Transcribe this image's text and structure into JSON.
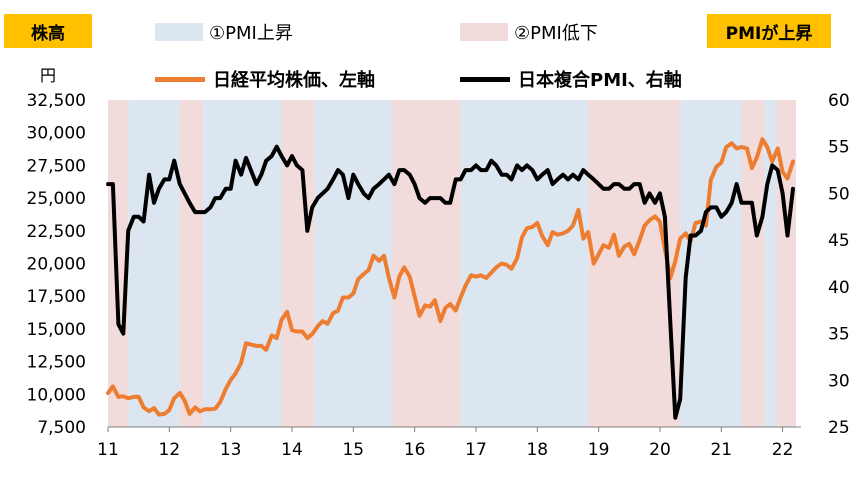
{
  "badge_left": "株高",
  "badge_right": "PMIが上昇",
  "unit_label": "円",
  "chart_data": {
    "type": "line",
    "title": "",
    "xlabel": "",
    "x_tick_labels": [
      "11",
      "12",
      "13",
      "14",
      "15",
      "16",
      "17",
      "18",
      "19",
      "20",
      "21",
      "22"
    ],
    "x_range": [
      2011.0,
      2022.3
    ],
    "left_axis": {
      "ylim": [
        7500,
        32500
      ],
      "ticks": [
        "7,500",
        "10,000",
        "12,500",
        "15,000",
        "17,500",
        "20,000",
        "22,500",
        "25,000",
        "27,500",
        "30,000",
        "32,500"
      ],
      "tick_values": [
        7500,
        10000,
        12500,
        15000,
        17500,
        20000,
        22500,
        25000,
        27500,
        30000,
        32500
      ]
    },
    "right_axis": {
      "ylim": [
        25,
        60
      ],
      "ticks": [
        "25",
        "30",
        "35",
        "40",
        "45",
        "50",
        "55",
        "60"
      ],
      "tick_values": [
        25,
        30,
        35,
        40,
        45,
        50,
        55,
        60
      ]
    },
    "shading": {
      "legend": [
        {
          "label": "①PMI上昇",
          "color": "#dce6f1"
        },
        {
          "label": "②PMI低下",
          "color": "#f2dcdb"
        }
      ],
      "periods": [
        {
          "type": 2,
          "start": 2011.0,
          "end": 2011.33
        },
        {
          "type": 1,
          "start": 2011.33,
          "end": 2012.17
        },
        {
          "type": 2,
          "start": 2012.17,
          "end": 2012.55
        },
        {
          "type": 1,
          "start": 2012.55,
          "end": 2013.83
        },
        {
          "type": 2,
          "start": 2013.83,
          "end": 2014.37
        },
        {
          "type": 1,
          "start": 2014.37,
          "end": 2015.63
        },
        {
          "type": 2,
          "start": 2015.63,
          "end": 2016.75
        },
        {
          "type": 1,
          "start": 2016.75,
          "end": 2018.83
        },
        {
          "type": 2,
          "start": 2018.83,
          "end": 2020.33
        },
        {
          "type": 1,
          "start": 2020.33,
          "end": 2021.33
        },
        {
          "type": 2,
          "start": 2021.33,
          "end": 2021.7
        },
        {
          "type": 1,
          "start": 2021.7,
          "end": 2021.9
        },
        {
          "type": 2,
          "start": 2021.9,
          "end": 2022.22
        }
      ]
    },
    "series": [
      {
        "name": "日経平均株価、左軸",
        "axis": "left",
        "color": "#ed7d31",
        "points": [
          [
            2011.0,
            10100
          ],
          [
            2011.08,
            10600
          ],
          [
            2011.17,
            9800
          ],
          [
            2011.25,
            9850
          ],
          [
            2011.33,
            9700
          ],
          [
            2011.42,
            9800
          ],
          [
            2011.5,
            9800
          ],
          [
            2011.58,
            9000
          ],
          [
            2011.67,
            8700
          ],
          [
            2011.75,
            8950
          ],
          [
            2011.83,
            8450
          ],
          [
            2011.92,
            8500
          ],
          [
            2012.0,
            8800
          ],
          [
            2012.08,
            9700
          ],
          [
            2012.17,
            10100
          ],
          [
            2012.25,
            9500
          ],
          [
            2012.33,
            8500
          ],
          [
            2012.42,
            9000
          ],
          [
            2012.5,
            8700
          ],
          [
            2012.58,
            8850
          ],
          [
            2012.67,
            8850
          ],
          [
            2012.75,
            8900
          ],
          [
            2012.83,
            9400
          ],
          [
            2012.92,
            10400
          ],
          [
            2013.0,
            11100
          ],
          [
            2013.08,
            11600
          ],
          [
            2013.17,
            12400
          ],
          [
            2013.25,
            13900
          ],
          [
            2013.33,
            13800
          ],
          [
            2013.42,
            13700
          ],
          [
            2013.5,
            13700
          ],
          [
            2013.58,
            13400
          ],
          [
            2013.67,
            14500
          ],
          [
            2013.75,
            14300
          ],
          [
            2013.83,
            15700
          ],
          [
            2013.92,
            16300
          ],
          [
            2014.0,
            14900
          ],
          [
            2014.08,
            14800
          ],
          [
            2014.17,
            14800
          ],
          [
            2014.25,
            14300
          ],
          [
            2014.33,
            14600
          ],
          [
            2014.42,
            15200
          ],
          [
            2014.5,
            15600
          ],
          [
            2014.58,
            15400
          ],
          [
            2014.67,
            16200
          ],
          [
            2014.75,
            16400
          ],
          [
            2014.83,
            17400
          ],
          [
            2014.92,
            17400
          ],
          [
            2015.0,
            17700
          ],
          [
            2015.08,
            18800
          ],
          [
            2015.17,
            19200
          ],
          [
            2015.25,
            19500
          ],
          [
            2015.33,
            20600
          ],
          [
            2015.42,
            20200
          ],
          [
            2015.5,
            20600
          ],
          [
            2015.58,
            18900
          ],
          [
            2015.67,
            17400
          ],
          [
            2015.75,
            19000
          ],
          [
            2015.83,
            19700
          ],
          [
            2015.92,
            19000
          ],
          [
            2016.0,
            17500
          ],
          [
            2016.08,
            16000
          ],
          [
            2016.17,
            16800
          ],
          [
            2016.25,
            16700
          ],
          [
            2016.33,
            17200
          ],
          [
            2016.42,
            15600
          ],
          [
            2016.5,
            16600
          ],
          [
            2016.58,
            16900
          ],
          [
            2016.67,
            16400
          ],
          [
            2016.75,
            17400
          ],
          [
            2016.83,
            18300
          ],
          [
            2016.92,
            19100
          ],
          [
            2017.0,
            19000
          ],
          [
            2017.08,
            19100
          ],
          [
            2017.17,
            18900
          ],
          [
            2017.25,
            19300
          ],
          [
            2017.33,
            19700
          ],
          [
            2017.42,
            20000
          ],
          [
            2017.5,
            19900
          ],
          [
            2017.58,
            19600
          ],
          [
            2017.67,
            20400
          ],
          [
            2017.75,
            22000
          ],
          [
            2017.83,
            22700
          ],
          [
            2017.92,
            22800
          ],
          [
            2018.0,
            23100
          ],
          [
            2018.08,
            22100
          ],
          [
            2018.17,
            21400
          ],
          [
            2018.25,
            22400
          ],
          [
            2018.33,
            22200
          ],
          [
            2018.42,
            22300
          ],
          [
            2018.5,
            22500
          ],
          [
            2018.58,
            22900
          ],
          [
            2018.67,
            24100
          ],
          [
            2018.75,
            21900
          ],
          [
            2018.83,
            22400
          ],
          [
            2018.92,
            20000
          ],
          [
            2019.0,
            20700
          ],
          [
            2019.08,
            21400
          ],
          [
            2019.17,
            21200
          ],
          [
            2019.25,
            22200
          ],
          [
            2019.33,
            20600
          ],
          [
            2019.42,
            21300
          ],
          [
            2019.5,
            21500
          ],
          [
            2019.58,
            20700
          ],
          [
            2019.67,
            21800
          ],
          [
            2019.75,
            22900
          ],
          [
            2019.83,
            23300
          ],
          [
            2019.92,
            23600
          ],
          [
            2020.0,
            23200
          ],
          [
            2020.08,
            21100
          ],
          [
            2020.17,
            18900
          ],
          [
            2020.25,
            20200
          ],
          [
            2020.33,
            21900
          ],
          [
            2020.42,
            22300
          ],
          [
            2020.5,
            21700
          ],
          [
            2020.58,
            23100
          ],
          [
            2020.67,
            23200
          ],
          [
            2020.75,
            22900
          ],
          [
            2020.83,
            26400
          ],
          [
            2020.92,
            27400
          ],
          [
            2021.0,
            27700
          ],
          [
            2021.08,
            28900
          ],
          [
            2021.17,
            29200
          ],
          [
            2021.25,
            28800
          ],
          [
            2021.33,
            28900
          ],
          [
            2021.42,
            28800
          ],
          [
            2021.5,
            27300
          ],
          [
            2021.58,
            28100
          ],
          [
            2021.67,
            29500
          ],
          [
            2021.75,
            28900
          ],
          [
            2021.83,
            27800
          ],
          [
            2021.92,
            28800
          ],
          [
            2022.0,
            27000
          ],
          [
            2022.08,
            26500
          ],
          [
            2022.17,
            27800
          ]
        ]
      },
      {
        "name": "日本複合PMI、右軸",
        "axis": "right",
        "color": "#000000",
        "points": [
          [
            2011.0,
            51
          ],
          [
            2011.08,
            51
          ],
          [
            2011.17,
            36
          ],
          [
            2011.25,
            35
          ],
          [
            2011.33,
            46
          ],
          [
            2011.42,
            47.5
          ],
          [
            2011.5,
            47.5
          ],
          [
            2011.58,
            47
          ],
          [
            2011.67,
            52
          ],
          [
            2011.75,
            49
          ],
          [
            2011.83,
            50.5
          ],
          [
            2011.92,
            51.5
          ],
          [
            2012.0,
            51.5
          ],
          [
            2012.08,
            53.5
          ],
          [
            2012.17,
            51
          ],
          [
            2012.25,
            50
          ],
          [
            2012.33,
            49
          ],
          [
            2012.42,
            48
          ],
          [
            2012.5,
            48
          ],
          [
            2012.58,
            48
          ],
          [
            2012.67,
            48.5
          ],
          [
            2012.75,
            49.5
          ],
          [
            2012.83,
            49.5
          ],
          [
            2012.92,
            50.5
          ],
          [
            2013.0,
            50.5
          ],
          [
            2013.08,
            53.5
          ],
          [
            2013.17,
            52
          ],
          [
            2013.25,
            53.8
          ],
          [
            2013.33,
            52.5
          ],
          [
            2013.42,
            51
          ],
          [
            2013.5,
            52
          ],
          [
            2013.58,
            53.5
          ],
          [
            2013.67,
            54
          ],
          [
            2013.75,
            55
          ],
          [
            2013.83,
            54
          ],
          [
            2013.92,
            53
          ],
          [
            2014.0,
            54
          ],
          [
            2014.08,
            53
          ],
          [
            2014.17,
            52.5
          ],
          [
            2014.25,
            46
          ],
          [
            2014.33,
            48.5
          ],
          [
            2014.42,
            49.5
          ],
          [
            2014.5,
            50
          ],
          [
            2014.58,
            50.5
          ],
          [
            2014.67,
            51.5
          ],
          [
            2014.75,
            52.5
          ],
          [
            2014.83,
            52
          ],
          [
            2014.92,
            49.5
          ],
          [
            2015.0,
            52
          ],
          [
            2015.08,
            51
          ],
          [
            2015.17,
            50
          ],
          [
            2015.25,
            49.5
          ],
          [
            2015.33,
            50.5
          ],
          [
            2015.42,
            51
          ],
          [
            2015.5,
            51.5
          ],
          [
            2015.58,
            52
          ],
          [
            2015.67,
            51
          ],
          [
            2015.75,
            52.5
          ],
          [
            2015.83,
            52.5
          ],
          [
            2015.92,
            52
          ],
          [
            2016.0,
            51
          ],
          [
            2016.08,
            49.5
          ],
          [
            2016.17,
            49
          ],
          [
            2016.25,
            49.5
          ],
          [
            2016.33,
            49.5
          ],
          [
            2016.42,
            49.5
          ],
          [
            2016.5,
            49
          ],
          [
            2016.58,
            49
          ],
          [
            2016.67,
            51.5
          ],
          [
            2016.75,
            51.5
          ],
          [
            2016.83,
            52.5
          ],
          [
            2016.92,
            52.5
          ],
          [
            2017.0,
            53
          ],
          [
            2017.08,
            52.5
          ],
          [
            2017.17,
            52.5
          ],
          [
            2017.25,
            53.5
          ],
          [
            2017.33,
            53
          ],
          [
            2017.42,
            52
          ],
          [
            2017.5,
            52
          ],
          [
            2017.58,
            51.5
          ],
          [
            2017.67,
            53
          ],
          [
            2017.75,
            52.5
          ],
          [
            2017.83,
            53
          ],
          [
            2017.92,
            52.5
          ],
          [
            2018.0,
            51.5
          ],
          [
            2018.08,
            52
          ],
          [
            2018.17,
            52.5
          ],
          [
            2018.25,
            51
          ],
          [
            2018.33,
            51.5
          ],
          [
            2018.42,
            52
          ],
          [
            2018.5,
            51.5
          ],
          [
            2018.58,
            52
          ],
          [
            2018.67,
            51.5
          ],
          [
            2018.75,
            52.5
          ],
          [
            2018.83,
            52
          ],
          [
            2018.92,
            51.5
          ],
          [
            2019.0,
            51
          ],
          [
            2019.08,
            50.5
          ],
          [
            2019.17,
            50.5
          ],
          [
            2019.25,
            51
          ],
          [
            2019.33,
            51
          ],
          [
            2019.42,
            50.5
          ],
          [
            2019.5,
            50.5
          ],
          [
            2019.58,
            51
          ],
          [
            2019.67,
            51
          ],
          [
            2019.75,
            49
          ],
          [
            2019.83,
            50
          ],
          [
            2019.92,
            49
          ],
          [
            2020.0,
            50
          ],
          [
            2020.08,
            47.5
          ],
          [
            2020.17,
            36
          ],
          [
            2020.25,
            26
          ],
          [
            2020.33,
            28
          ],
          [
            2020.42,
            41
          ],
          [
            2020.5,
            45.5
          ],
          [
            2020.58,
            45.5
          ],
          [
            2020.67,
            46
          ],
          [
            2020.75,
            48
          ],
          [
            2020.83,
            48.5
          ],
          [
            2020.92,
            48.5
          ],
          [
            2021.0,
            47.5
          ],
          [
            2021.08,
            48
          ],
          [
            2021.17,
            49
          ],
          [
            2021.25,
            51
          ],
          [
            2021.33,
            49
          ],
          [
            2021.42,
            49
          ],
          [
            2021.5,
            49
          ],
          [
            2021.58,
            45.5
          ],
          [
            2021.67,
            47.5
          ],
          [
            2021.75,
            51
          ],
          [
            2021.83,
            53
          ],
          [
            2021.92,
            52.5
          ],
          [
            2022.0,
            50
          ],
          [
            2022.08,
            45.5
          ],
          [
            2022.17,
            50.5
          ]
        ]
      }
    ]
  }
}
